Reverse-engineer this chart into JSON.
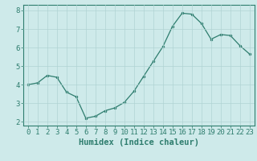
{
  "x": [
    0,
    1,
    2,
    3,
    4,
    5,
    6,
    7,
    8,
    9,
    10,
    11,
    12,
    13,
    14,
    15,
    16,
    17,
    18,
    19,
    20,
    21,
    22,
    23
  ],
  "y": [
    4.0,
    4.1,
    4.5,
    4.4,
    3.6,
    3.35,
    2.2,
    2.3,
    2.6,
    2.75,
    3.05,
    3.65,
    4.45,
    5.25,
    6.05,
    7.15,
    7.85,
    7.8,
    7.3,
    6.45,
    6.7,
    6.65,
    6.1,
    5.65
  ],
  "line_color": "#2e7d6e",
  "marker": "o",
  "marker_size": 2.0,
  "bg_color": "#ceeaea",
  "grid_color": "#b0d4d4",
  "xlabel": "Humidex (Indice chaleur)",
  "xlim": [
    -0.5,
    23.5
  ],
  "ylim": [
    1.8,
    8.3
  ],
  "yticks": [
    2,
    3,
    4,
    5,
    6,
    7,
    8
  ],
  "xticks": [
    0,
    1,
    2,
    3,
    4,
    5,
    6,
    7,
    8,
    9,
    10,
    11,
    12,
    13,
    14,
    15,
    16,
    17,
    18,
    19,
    20,
    21,
    22,
    23
  ],
  "tick_color": "#2e7d6e",
  "label_color": "#2e7d6e",
  "spine_color": "#2e7d6e",
  "font_size": 6.5,
  "xlabel_fontsize": 7.5
}
